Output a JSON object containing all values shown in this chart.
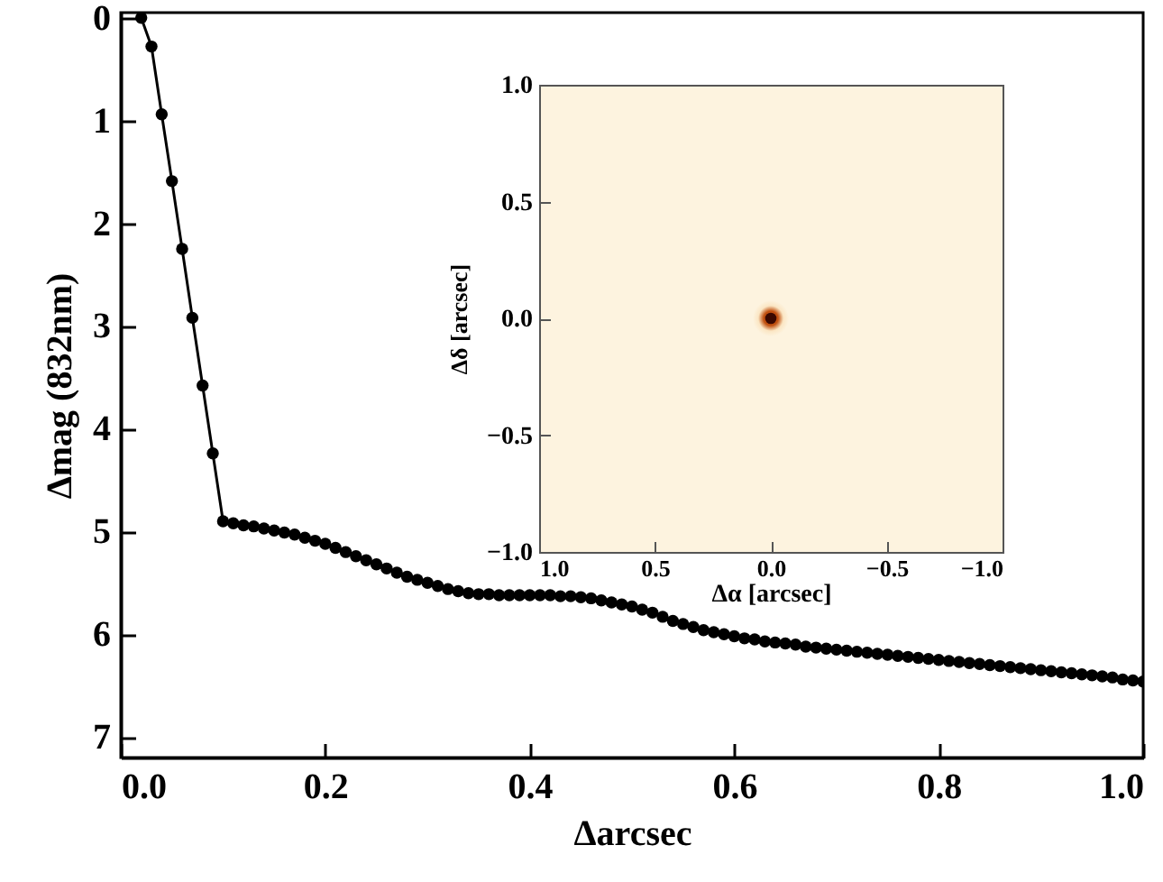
{
  "chart_data": [
    {
      "type": "line",
      "xlabel": "Δarcsec",
      "ylabel": "Δmag (832nm)",
      "xlim": [
        0,
        1
      ],
      "ylim": [
        7.2,
        -0.05
      ],
      "xticks": [
        {
          "value": 0,
          "label": "0.0"
        },
        0.2,
        0.4,
        0.6,
        0.8,
        {
          "value": 1,
          "label": "1.0"
        }
      ],
      "yticks": [
        0,
        1,
        2,
        3,
        4,
        5,
        6,
        7
      ],
      "marker": "circle",
      "line_style": "solid",
      "grid": false,
      "x": [
        0.02,
        0.03,
        0.04,
        0.05,
        0.06,
        0.07,
        0.08,
        0.09,
        0.1,
        0.11,
        0.12,
        0.13,
        0.14,
        0.15,
        0.16,
        0.17,
        0.18,
        0.19,
        0.2,
        0.21,
        0.22,
        0.23,
        0.24,
        0.25,
        0.26,
        0.27,
        0.28,
        0.29,
        0.3,
        0.31,
        0.32,
        0.33,
        0.34,
        0.35,
        0.36,
        0.37,
        0.38,
        0.39,
        0.4,
        0.41,
        0.42,
        0.43,
        0.44,
        0.45,
        0.46,
        0.47,
        0.48,
        0.49,
        0.5,
        0.51,
        0.52,
        0.53,
        0.54,
        0.55,
        0.56,
        0.57,
        0.58,
        0.59,
        0.6,
        0.61,
        0.62,
        0.63,
        0.64,
        0.65,
        0.66,
        0.67,
        0.68,
        0.69,
        0.7,
        0.71,
        0.72,
        0.73,
        0.74,
        0.75,
        0.76,
        0.77,
        0.78,
        0.79,
        0.8,
        0.81,
        0.82,
        0.83,
        0.84,
        0.85,
        0.86,
        0.87,
        0.88,
        0.89,
        0.9,
        0.91,
        0.92,
        0.93,
        0.94,
        0.95,
        0.96,
        0.97,
        0.98,
        0.99,
        1.0
      ],
      "series": [
        {
          "color": "#000000",
          "values": [
            0.0,
            0.28,
            0.94,
            1.59,
            2.25,
            2.92,
            3.58,
            4.24,
            4.9,
            4.92,
            4.94,
            4.95,
            4.97,
            4.99,
            5.01,
            5.03,
            5.06,
            5.09,
            5.12,
            5.16,
            5.2,
            5.24,
            5.28,
            5.32,
            5.36,
            5.4,
            5.44,
            5.47,
            5.5,
            5.53,
            5.56,
            5.58,
            5.6,
            5.61,
            5.61,
            5.62,
            5.62,
            5.62,
            5.62,
            5.62,
            5.62,
            5.63,
            5.63,
            5.64,
            5.65,
            5.67,
            5.69,
            5.71,
            5.73,
            5.76,
            5.79,
            5.83,
            5.87,
            5.9,
            5.93,
            5.96,
            5.98,
            6.0,
            6.02,
            6.04,
            6.05,
            6.07,
            6.08,
            6.09,
            6.1,
            6.12,
            6.13,
            6.14,
            6.15,
            6.16,
            6.17,
            6.18,
            6.19,
            6.2,
            6.21,
            6.22,
            6.23,
            6.24,
            6.25,
            6.26,
            6.27,
            6.28,
            6.29,
            6.3,
            6.31,
            6.32,
            6.33,
            6.34,
            6.35,
            6.36,
            6.37,
            6.38,
            6.39,
            6.4,
            6.41,
            6.42,
            6.44,
            6.45,
            6.46
          ]
        }
      ]
    },
    {
      "type": "scatter",
      "marker": "circle",
      "x": [
        0
      ],
      "series": [
        {
          "color": "#3a0800",
          "values": [
            0
          ]
        }
      ],
      "xlabel": "Δα [arcsec]",
      "ylabel": "Δδ [arcsec]",
      "xlim": [
        1,
        -1
      ],
      "ylim": [
        -1,
        1
      ],
      "xticks": [
        {
          "value": 1,
          "label": "1.0"
        },
        0.5,
        {
          "value": 0,
          "label": "0.0"
        },
        {
          "value": -0.5,
          "label": "−0.5"
        },
        {
          "value": -1,
          "label": "−1.0"
        }
      ],
      "yticks": [
        {
          "value": -1,
          "label": "−1.0"
        },
        {
          "value": -0.5,
          "label": "−0.5"
        },
        {
          "value": 0,
          "label": "0.0"
        },
        0.5,
        {
          "value": 1,
          "label": "1.0"
        }
      ]
    }
  ]
}
